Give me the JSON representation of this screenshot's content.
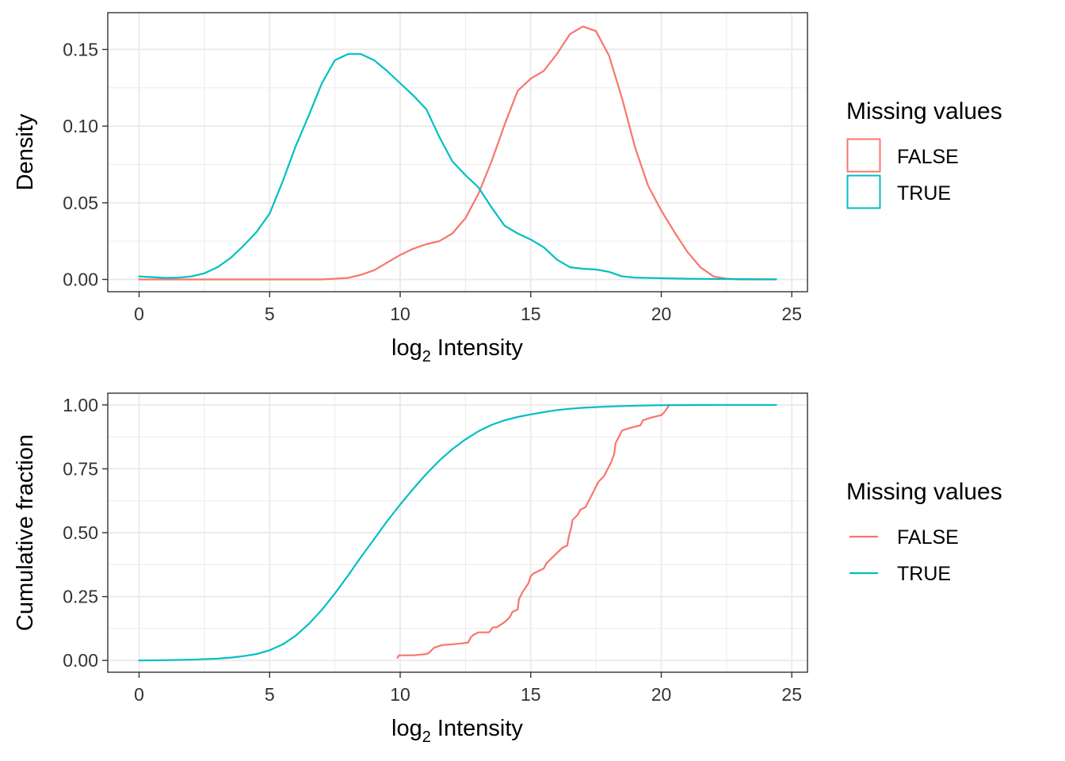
{
  "colors": {
    "FALSE": "#F8766D",
    "TRUE": "#00BFC4",
    "grid": "#EBEBEB",
    "panel_border": "#333333"
  },
  "chart_data": [
    {
      "type": "line",
      "title": "",
      "xlabel": "log",
      "xlabel_sub": "2",
      "xlabel_suffix": " Intensity",
      "ylabel": "Density",
      "xlim": [
        -1.2,
        25.6
      ],
      "ylim": [
        -0.008,
        0.174
      ],
      "xticks": [
        0,
        5,
        10,
        15,
        20,
        25
      ],
      "xtick_labels": [
        "0",
        "5",
        "10",
        "15",
        "20",
        "25"
      ],
      "yticks": [
        0,
        0.05,
        0.1,
        0.15
      ],
      "ytick_labels": [
        "0.00",
        "0.05",
        "0.10",
        "0.15"
      ],
      "legend": {
        "title": "Missing values",
        "style": "box",
        "entries": [
          "FALSE",
          "TRUE"
        ]
      },
      "series": [
        {
          "name": "FALSE",
          "x": [
            0,
            2,
            4,
            6,
            7,
            7.5,
            8,
            8.5,
            9,
            9.5,
            10,
            10.5,
            11,
            11.5,
            12,
            12.5,
            13,
            13.5,
            14,
            14.5,
            15,
            15.5,
            16,
            16.5,
            17,
            17.5,
            18,
            18.5,
            19,
            19.5,
            20,
            20.5,
            21,
            21.5,
            22,
            22.5,
            23,
            23.5,
            24.4
          ],
          "values": [
            0,
            0,
            0,
            0,
            0,
            0.0005,
            0.001,
            0.003,
            0.006,
            0.011,
            0.016,
            0.02,
            0.023,
            0.025,
            0.03,
            0.04,
            0.056,
            0.077,
            0.101,
            0.123,
            0.131,
            0.136,
            0.147,
            0.16,
            0.165,
            0.162,
            0.146,
            0.118,
            0.086,
            0.061,
            0.045,
            0.031,
            0.018,
            0.008,
            0.002,
            0.0005,
            0,
            0,
            0
          ]
        },
        {
          "name": "TRUE",
          "x": [
            0,
            0.5,
            1,
            1.5,
            2,
            2.5,
            3,
            3.5,
            4,
            4.5,
            5,
            5.5,
            6,
            6.5,
            7,
            7.5,
            8,
            8.5,
            9,
            9.5,
            10,
            10.5,
            11,
            11.5,
            12,
            12.5,
            13,
            13.5,
            14,
            14.5,
            15,
            15.5,
            16,
            16.5,
            17,
            17.5,
            18,
            18.5,
            19,
            20,
            21,
            22,
            23,
            24.4
          ],
          "values": [
            0.002,
            0.0015,
            0.001,
            0.0012,
            0.002,
            0.004,
            0.008,
            0.014,
            0.022,
            0.031,
            0.043,
            0.064,
            0.087,
            0.107,
            0.128,
            0.143,
            0.147,
            0.147,
            0.143,
            0.136,
            0.128,
            0.12,
            0.111,
            0.093,
            0.077,
            0.068,
            0.06,
            0.047,
            0.035,
            0.03,
            0.026,
            0.021,
            0.013,
            0.008,
            0.007,
            0.0065,
            0.005,
            0.002,
            0.0012,
            0.0008,
            0.0005,
            0.0003,
            0.0002,
            0.0001
          ]
        }
      ]
    },
    {
      "type": "line",
      "title": "",
      "xlabel": "log",
      "xlabel_sub": "2",
      "xlabel_suffix": " Intensity",
      "ylabel": "Cumulative fraction",
      "xlim": [
        -1.2,
        25.6
      ],
      "ylim": [
        -0.046,
        1.046
      ],
      "xticks": [
        0,
        5,
        10,
        15,
        20,
        25
      ],
      "xtick_labels": [
        "0",
        "5",
        "10",
        "15",
        "20",
        "25"
      ],
      "yticks": [
        0,
        0.25,
        0.5,
        0.75,
        1.0
      ],
      "ytick_labels": [
        "0.00",
        "0.25",
        "0.50",
        "0.75",
        "1.00"
      ],
      "legend": {
        "title": "Missing values",
        "style": "line",
        "entries": [
          "FALSE",
          "TRUE"
        ]
      },
      "series": [
        {
          "name": "FALSE",
          "x": [
            9.9,
            9.95,
            10.5,
            11.0,
            11.1,
            11.3,
            11.6,
            12.2,
            12.6,
            12.7,
            12.8,
            13.0,
            13.4,
            13.55,
            13.7,
            14.0,
            14.2,
            14.3,
            14.5,
            14.55,
            14.7,
            14.9,
            15.0,
            15.1,
            15.3,
            15.5,
            15.6,
            15.8,
            16.0,
            16.2,
            16.4,
            16.45,
            16.55,
            16.6,
            16.8,
            16.9,
            17.1,
            17.2,
            17.35,
            17.5,
            17.6,
            17.8,
            17.9,
            18.0,
            18.1,
            18.2,
            18.25,
            18.3,
            18.4,
            18.5,
            18.8,
            19.2,
            19.3,
            19.6,
            20.0,
            20.1,
            20.25,
            20.3
          ],
          "values": [
            0.01,
            0.02,
            0.02,
            0.025,
            0.03,
            0.05,
            0.06,
            0.065,
            0.07,
            0.09,
            0.1,
            0.11,
            0.11,
            0.13,
            0.13,
            0.15,
            0.17,
            0.19,
            0.2,
            0.24,
            0.27,
            0.3,
            0.33,
            0.34,
            0.35,
            0.36,
            0.38,
            0.4,
            0.42,
            0.44,
            0.45,
            0.48,
            0.52,
            0.55,
            0.57,
            0.59,
            0.6,
            0.62,
            0.65,
            0.68,
            0.7,
            0.72,
            0.74,
            0.76,
            0.78,
            0.81,
            0.85,
            0.86,
            0.88,
            0.9,
            0.91,
            0.92,
            0.94,
            0.95,
            0.96,
            0.97,
            0.99,
            1.0
          ]
        },
        {
          "name": "TRUE",
          "x": [
            0,
            1,
            2,
            3,
            3.5,
            4,
            4.5,
            5,
            5.5,
            6,
            6.5,
            7,
            7.5,
            8,
            8.5,
            9,
            9.5,
            10,
            10.5,
            11,
            11.5,
            12,
            12.5,
            13,
            13.5,
            14,
            14.5,
            15,
            15.5,
            16,
            16.5,
            17,
            18,
            19,
            20,
            21,
            22,
            23,
            24.4
          ],
          "values": [
            0.0,
            0.001,
            0.003,
            0.007,
            0.011,
            0.017,
            0.025,
            0.04,
            0.063,
            0.097,
            0.143,
            0.198,
            0.262,
            0.332,
            0.405,
            0.475,
            0.545,
            0.61,
            0.672,
            0.73,
            0.782,
            0.827,
            0.865,
            0.897,
            0.922,
            0.94,
            0.953,
            0.963,
            0.972,
            0.98,
            0.985,
            0.989,
            0.994,
            0.997,
            0.999,
            0.9995,
            1.0,
            1.0,
            1.0
          ]
        }
      ]
    }
  ]
}
